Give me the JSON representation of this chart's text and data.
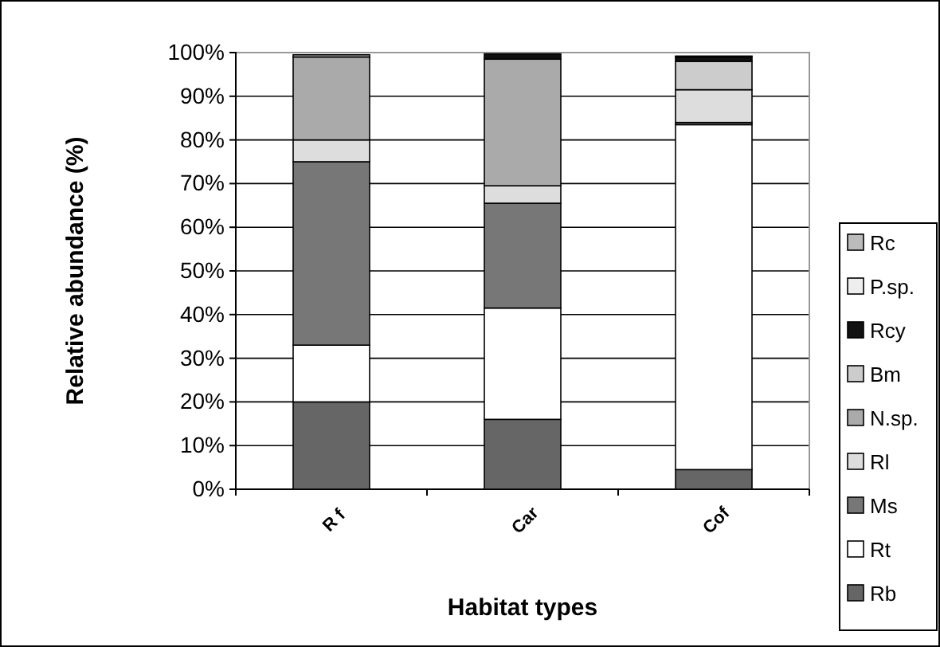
{
  "chart_data": {
    "type": "bar",
    "stacked": true,
    "xlabel": "Habitat types",
    "ylabel": "Relative abundance (%)",
    "categories": [
      "R f",
      "Car",
      "Cof"
    ],
    "series": [
      {
        "name": "Rb",
        "color": "#666666",
        "values": [
          20,
          16,
          4.5
        ]
      },
      {
        "name": "Rt",
        "color": "#ffffff",
        "values": [
          13,
          25.5,
          79
        ]
      },
      {
        "name": "Ms",
        "color": "#777777",
        "values": [
          42,
          24,
          0.5
        ]
      },
      {
        "name": "Rl",
        "color": "#dddddd",
        "values": [
          5,
          4,
          7.5
        ]
      },
      {
        "name": "N.sp.",
        "color": "#aaaaaa",
        "values": [
          19,
          29,
          null
        ]
      },
      {
        "name": "Bm",
        "color": "#cccccc",
        "values": [
          0,
          0,
          6.5
        ]
      },
      {
        "name": "Rcy",
        "color": "#111111",
        "values": [
          0,
          1.2,
          1
        ]
      },
      {
        "name": "P.sp.",
        "color": "#eeeeee",
        "values": [
          null,
          0,
          null
        ]
      },
      {
        "name": "Rc",
        "color": "#bbbbbb",
        "values": [
          0.5,
          null,
          0.2
        ]
      }
    ],
    "ylim": [
      0,
      100
    ],
    "yticks": [
      {
        "value": 0,
        "label": "0%"
      },
      {
        "value": 10,
        "label": "10%"
      },
      {
        "value": 20,
        "label": "20%"
      },
      {
        "value": 30,
        "label": "30%"
      },
      {
        "value": 40,
        "label": "40%"
      },
      {
        "value": 50,
        "label": "50%"
      },
      {
        "value": 60,
        "label": "60%"
      },
      {
        "value": 70,
        "label": "70%"
      },
      {
        "value": 80,
        "label": "80%"
      },
      {
        "value": 90,
        "label": "90%"
      },
      {
        "value": 100,
        "label": "100%"
      }
    ],
    "grid": "y",
    "legend": "right"
  }
}
